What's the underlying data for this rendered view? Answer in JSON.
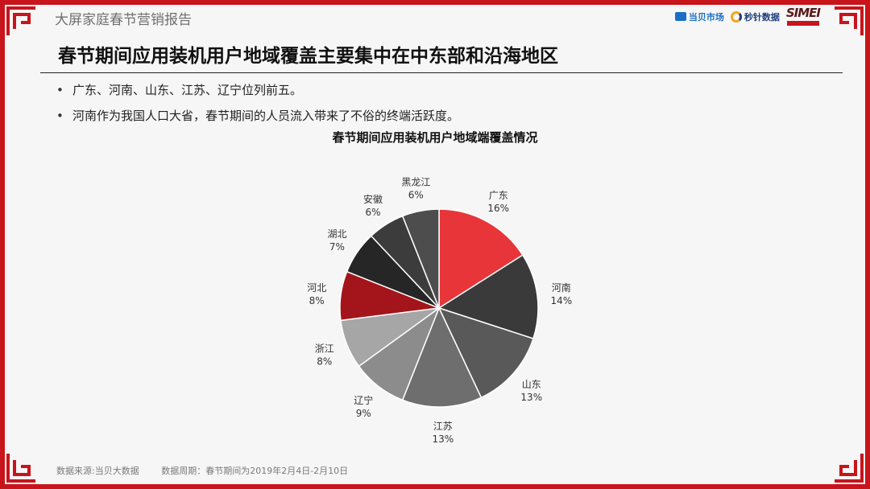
{
  "header": {
    "title": "大屏家庭春节营销报告",
    "logos": [
      "当贝市场",
      "秒针数据",
      "SIMEI"
    ]
  },
  "main_title": "春节期间应用装机用户地域覆盖主要集中在中东部和沿海地区",
  "bullets": [
    "广东、河南、山东、江苏、辽宁位列前五。",
    "河南作为我国人口大省，春节期间的人员流入带来了不俗的终端活跃度。"
  ],
  "footer": {
    "source": "数据来源:当贝大数据",
    "period": "数据周期：春节期间为2019年2月4日-2月10日"
  },
  "colors": {
    "border": "#c8141b",
    "accent": "#e8353a"
  },
  "chart_data": {
    "type": "pie",
    "title": "春节期间应用装机用户地域端覆盖情况",
    "categories": [
      "广东",
      "河南",
      "山东",
      "江苏",
      "辽宁",
      "浙江",
      "河北",
      "湖北",
      "安徽",
      "黑龙江"
    ],
    "values": [
      16,
      14,
      13,
      13,
      9,
      8,
      8,
      7,
      6,
      6
    ],
    "labels": [
      "16%",
      "14%",
      "13%",
      "13%",
      "9%",
      "8%",
      "8%",
      "7%",
      "6%",
      "6%"
    ],
    "colors": [
      "#e8353a",
      "#3a3a3a",
      "#595959",
      "#6e6e6e",
      "#8c8c8c",
      "#a6a6a6",
      "#a3151b",
      "#262626",
      "#3c3c3c",
      "#4d4d4d"
    ],
    "legend": "none"
  }
}
